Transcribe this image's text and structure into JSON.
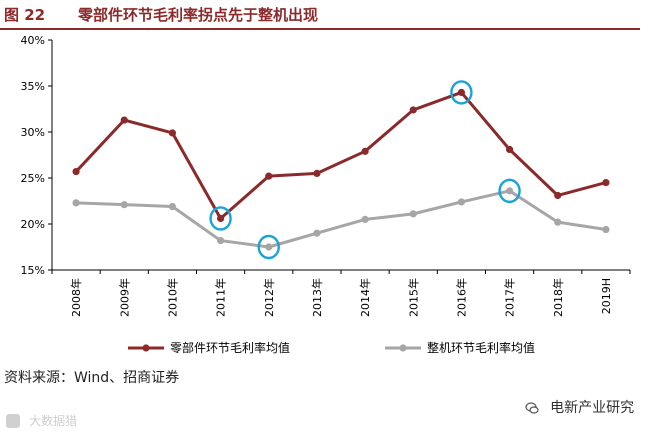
{
  "header": {
    "figure_number": "图 22",
    "title": "零部件环节毛利率拐点先于整机出现"
  },
  "source": "资料来源：Wind、招商证券",
  "watermark": "大数据猎",
  "wechat_label": "电新产业研究",
  "colors": {
    "accent": "#8b2a2a",
    "series_parts": "#8b2a2a",
    "series_whole": "#a6a6a6",
    "highlight_circle": "#1aa3d9"
  },
  "icons": {
    "watermark": "badge-icon",
    "wechat": "wechat-icon"
  },
  "chart_data": {
    "type": "line",
    "categories": [
      "2008年",
      "2009年",
      "2010年",
      "2011年",
      "2012年",
      "2013年",
      "2014年",
      "2015年",
      "2016年",
      "2017年",
      "2018年",
      "2019H"
    ],
    "series": [
      {
        "name": "零部件环节毛利率均值",
        "values": [
          25.7,
          31.3,
          29.9,
          20.6,
          25.2,
          25.5,
          27.9,
          32.4,
          34.3,
          28.1,
          23.1,
          24.5
        ]
      },
      {
        "name": "整机环节毛利率均值",
        "values": [
          22.3,
          22.1,
          21.9,
          18.2,
          17.5,
          19.0,
          20.5,
          21.1,
          22.4,
          23.6,
          20.2,
          19.4
        ]
      }
    ],
    "highlights": [
      {
        "series": 0,
        "category": "2011年"
      },
      {
        "series": 0,
        "category": "2016年"
      },
      {
        "series": 1,
        "category": "2012年"
      },
      {
        "series": 1,
        "category": "2017年"
      }
    ],
    "ylim": [
      15,
      40
    ],
    "yticks": [
      15,
      20,
      25,
      30,
      35,
      40
    ],
    "ytick_labels": [
      "15%",
      "20%",
      "25%",
      "30%",
      "35%",
      "40%"
    ],
    "grid": false,
    "legend": "bottom"
  }
}
